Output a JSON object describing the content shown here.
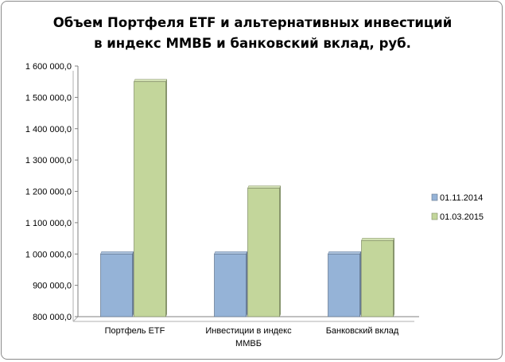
{
  "chart_data": {
    "type": "bar",
    "title_lines": [
      "Объем Портфеля ETF и альтернативных  инвестиций",
      "в индекс ММВБ и банковский  вклад,  руб."
    ],
    "categories": [
      [
        "Портфель ETF"
      ],
      [
        "Инвестиции в индекс",
        "ММВБ"
      ],
      [
        "Банковский вклад"
      ]
    ],
    "series": [
      {
        "name": "01.11.2014",
        "values": [
          1000000,
          1000000,
          1000000
        ],
        "color": "#95b3d7"
      },
      {
        "name": "01.03.2015",
        "values": [
          1550000,
          1210000,
          1043000
        ],
        "color": "#c3d69b"
      }
    ],
    "ylim": [
      800000,
      1600000
    ],
    "yticks": [
      {
        "value": 800000,
        "label": "800 000,0"
      },
      {
        "value": 900000,
        "label": "900 000,0"
      },
      {
        "value": 1000000,
        "label": "1 000 000,0"
      },
      {
        "value": 1100000,
        "label": "1 100 000,0"
      },
      {
        "value": 1200000,
        "label": "1 200 000,0"
      },
      {
        "value": 1300000,
        "label": "1 300 000,0"
      },
      {
        "value": 1400000,
        "label": "1 400 000,0"
      },
      {
        "value": 1500000,
        "label": "1 500 000,0"
      },
      {
        "value": 1600000,
        "label": "1 600 000,0"
      }
    ],
    "legend_position": "right",
    "grid": false,
    "bar_style": "3d"
  }
}
